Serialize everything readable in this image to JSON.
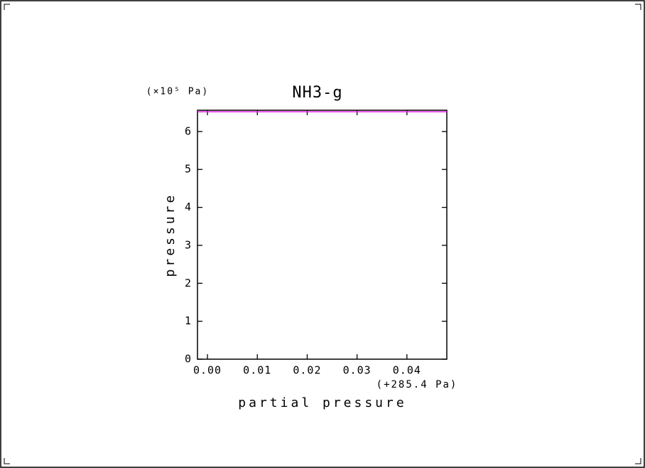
{
  "chart_data": {
    "type": "line",
    "title": "NH3-g",
    "x_label": "partial pressure",
    "y_label": "pressure",
    "y_multiplier": "(×10⁵ Pa)",
    "x_offset": "(+285.4 Pa)",
    "x": [
      -0.002,
      0.048
    ],
    "series": [
      {
        "name": "NH3-g",
        "color": "#e020e0",
        "values": [
          6.52,
          6.52
        ]
      }
    ],
    "xlim": [
      -0.002,
      0.048
    ],
    "xticks": [
      {
        "value": 0,
        "label": "0.00"
      },
      0.01,
      0.02,
      0.03,
      0.04
    ],
    "ylim": [
      0,
      6.56
    ],
    "yticks": [
      0,
      1,
      2,
      3,
      4,
      5,
      6
    ],
    "grid": false
  }
}
